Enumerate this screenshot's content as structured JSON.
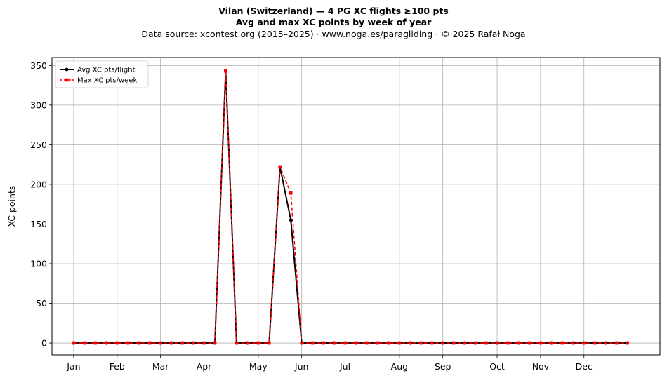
{
  "header": {
    "title": "Vilan (Switzerland)  —  4 PG XC flights ≥100 pts",
    "subtitle": "Avg and max XC points by week of year",
    "source": "Data source: xcontest.org (2015–2025)  ·  www.noga.es/paragliding  ·  © 2025 Rafał Noga"
  },
  "chart_data": {
    "type": "line",
    "ylabel": "XC points",
    "xlabel": "",
    "ylim": [
      -15,
      360
    ],
    "xlim": [
      -2,
      54
    ],
    "grid": true,
    "legend_position": "top-left",
    "y_ticks": [
      "0",
      "50",
      "100",
      "150",
      "200",
      "250",
      "300",
      "350"
    ],
    "month_ticks": [
      {
        "label": "Jan",
        "week": 0
      },
      {
        "label": "Feb",
        "week": 4
      },
      {
        "label": "Mar",
        "week": 8
      },
      {
        "label": "Apr",
        "week": 12
      },
      {
        "label": "May",
        "week": 17
      },
      {
        "label": "Jun",
        "week": 21
      },
      {
        "label": "Jul",
        "week": 25
      },
      {
        "label": "Aug",
        "week": 30
      },
      {
        "label": "Sep",
        "week": 34
      },
      {
        "label": "Oct",
        "week": 39
      },
      {
        "label": "Nov",
        "week": 43
      },
      {
        "label": "Dec",
        "week": 47
      }
    ],
    "x": [
      0,
      1,
      2,
      3,
      4,
      5,
      6,
      7,
      8,
      9,
      10,
      11,
      12,
      13,
      14,
      15,
      16,
      17,
      18,
      19,
      20,
      21,
      22,
      23,
      24,
      25,
      26,
      27,
      28,
      29,
      30,
      31,
      32,
      33,
      34,
      35,
      36,
      37,
      38,
      39,
      40,
      41,
      42,
      43,
      44,
      45,
      46,
      47,
      48,
      49,
      50,
      51
    ],
    "series": [
      {
        "name": "Avg XC pts/flight",
        "color": "#000000",
        "values": [
          0,
          0,
          0,
          0,
          0,
          0,
          0,
          0,
          0,
          0,
          0,
          0,
          0,
          0,
          343,
          0,
          0,
          0,
          0,
          222,
          155,
          0,
          0,
          0,
          0,
          0,
          0,
          0,
          0,
          0,
          0,
          0,
          0,
          0,
          0,
          0,
          0,
          0,
          0,
          0,
          0,
          0,
          0,
          0,
          0,
          0,
          0,
          0,
          0,
          0,
          0,
          0
        ]
      },
      {
        "name": "Max XC pts/week",
        "color": "#ff0000",
        "values": [
          0,
          0,
          0,
          0,
          0,
          0,
          0,
          0,
          0,
          0,
          0,
          0,
          0,
          0,
          343,
          0,
          0,
          0,
          0,
          222,
          189,
          0,
          0,
          0,
          0,
          0,
          0,
          0,
          0,
          0,
          0,
          0,
          0,
          0,
          0,
          0,
          0,
          0,
          0,
          0,
          0,
          0,
          0,
          0,
          0,
          0,
          0,
          0,
          0,
          0,
          0,
          0
        ]
      }
    ]
  }
}
